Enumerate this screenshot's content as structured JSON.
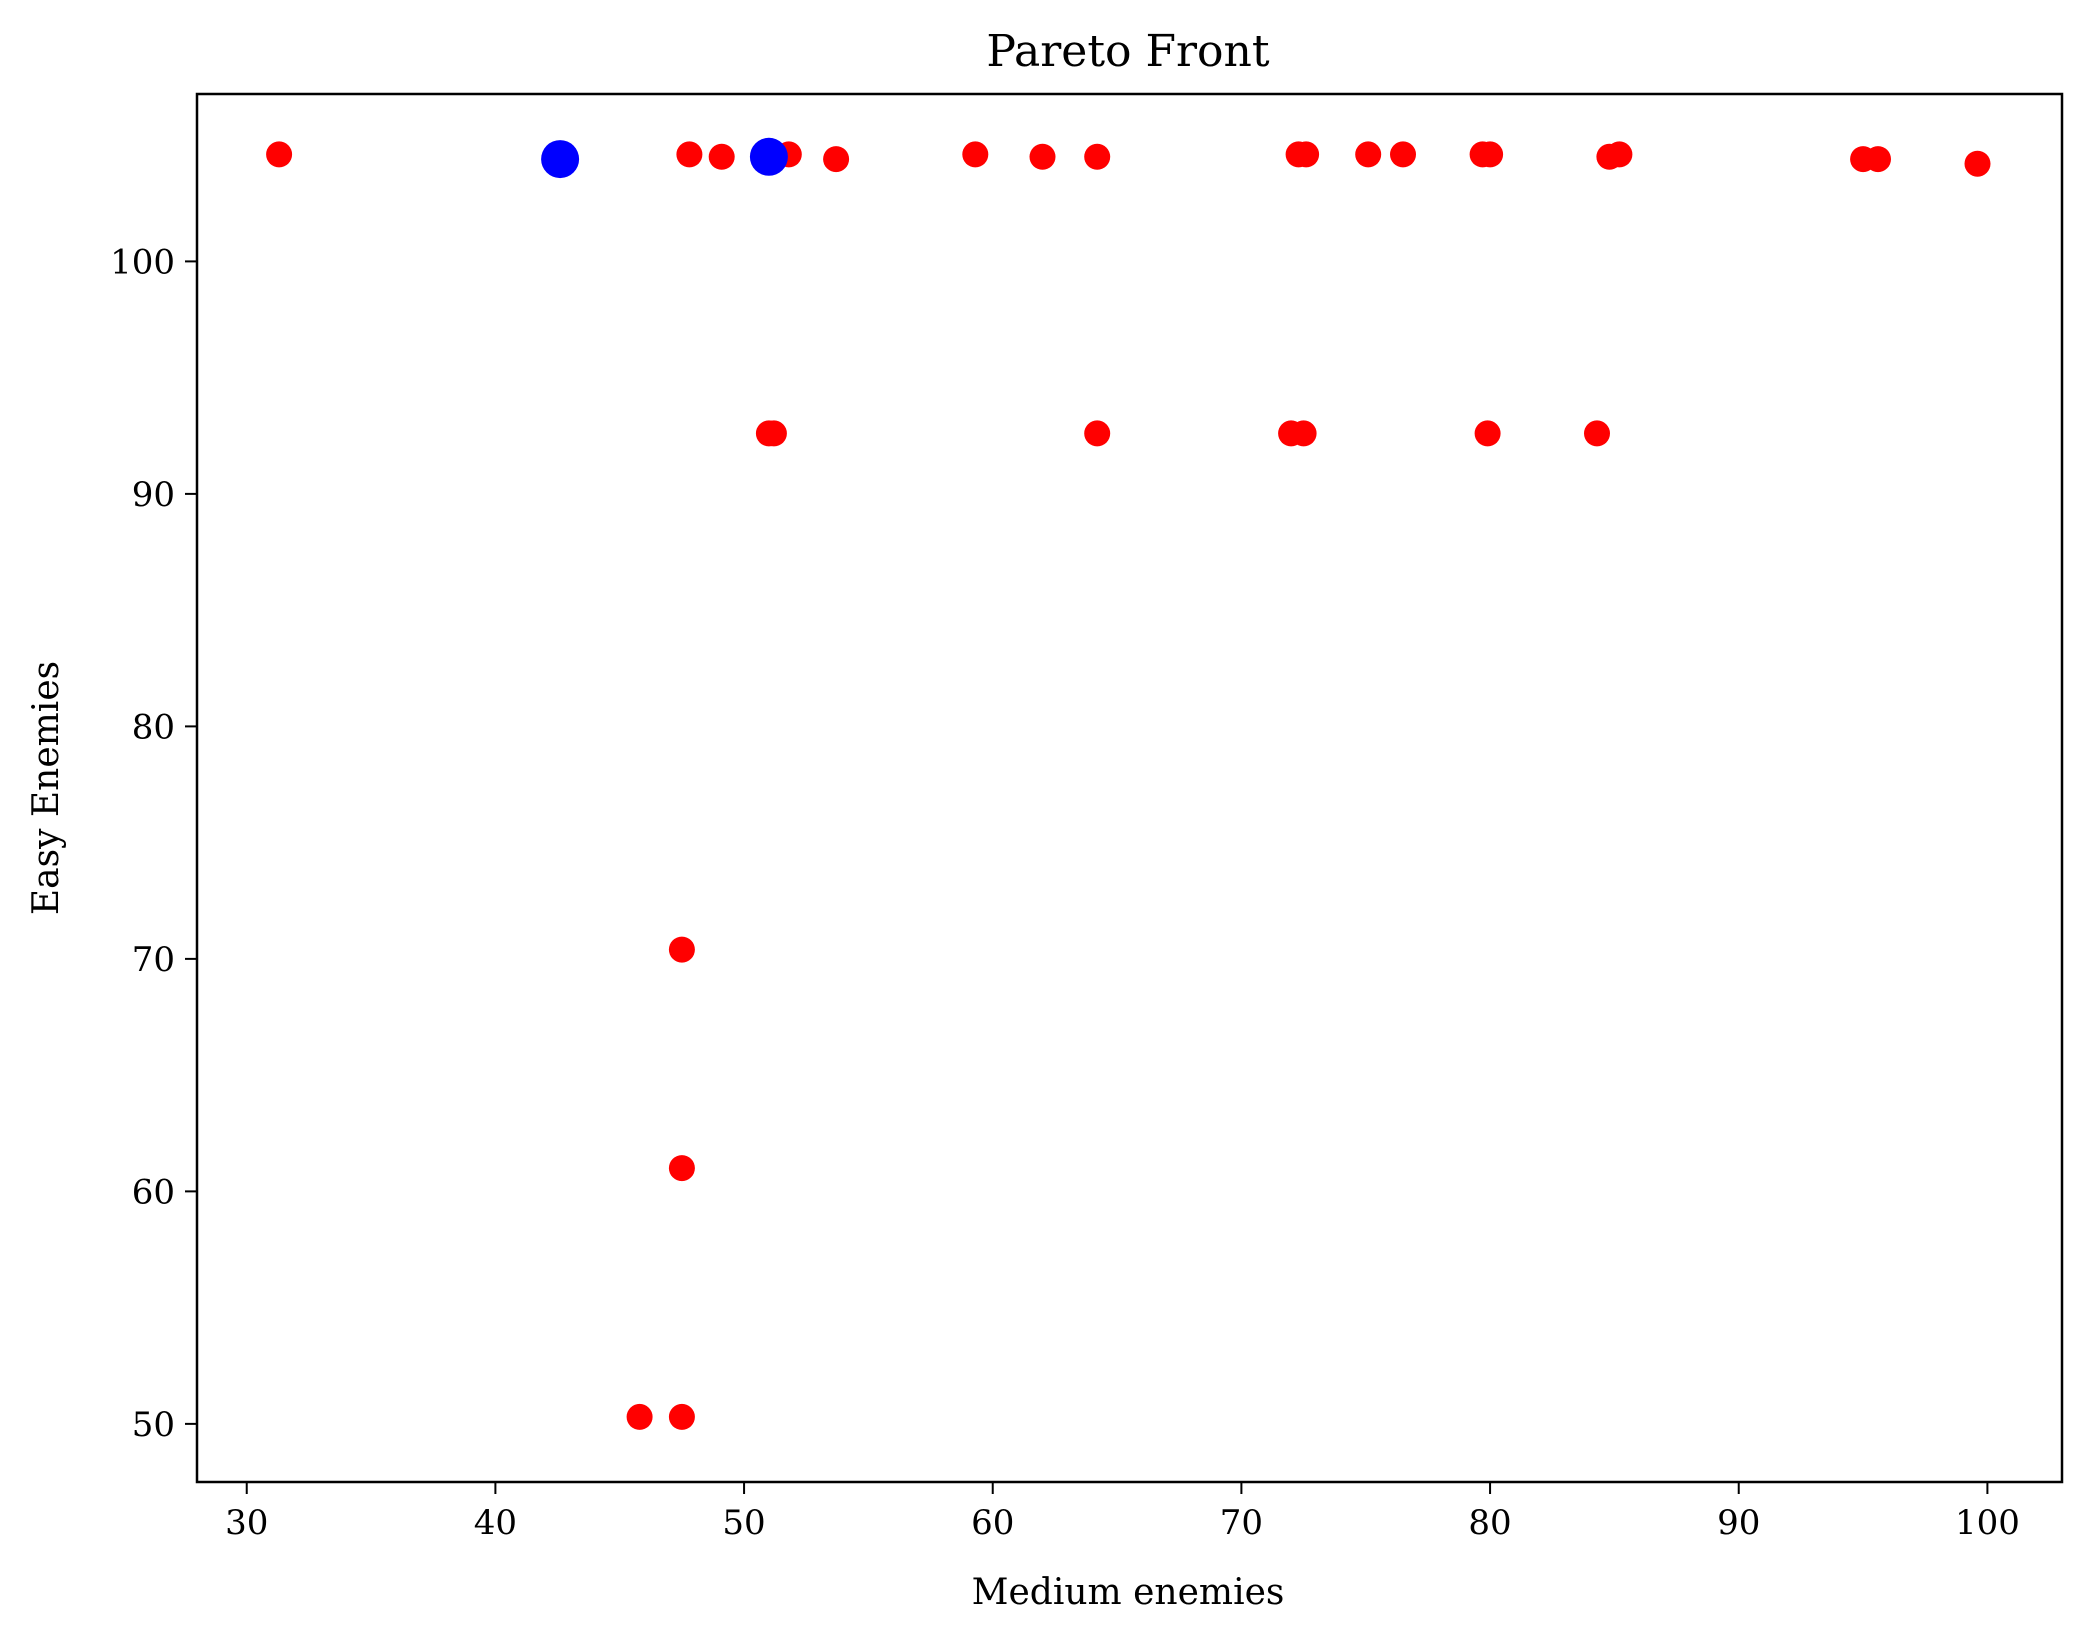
{
  "chart_data": {
    "type": "scatter",
    "title": "Pareto Front",
    "xlabel": "Medium enemies",
    "ylabel": "Easy Enemies",
    "xlim": [
      28,
      103
    ],
    "ylim": [
      47.5,
      107.2
    ],
    "xticks": [
      30,
      40,
      50,
      60,
      70,
      80,
      90,
      100
    ],
    "yticks": [
      50,
      60,
      70,
      80,
      90,
      100
    ],
    "grid": false,
    "series": [
      {
        "color": "#ff0000",
        "marker_size": "small",
        "points": [
          [
            31.3,
            104.6
          ],
          [
            47.8,
            104.6
          ],
          [
            49.1,
            104.5
          ],
          [
            51.8,
            104.6
          ],
          [
            53.7,
            104.4
          ],
          [
            59.3,
            104.6
          ],
          [
            62.0,
            104.5
          ],
          [
            64.2,
            104.5
          ],
          [
            72.3,
            104.6
          ],
          [
            72.6,
            104.6
          ],
          [
            75.1,
            104.6
          ],
          [
            76.5,
            104.6
          ],
          [
            79.7,
            104.6
          ],
          [
            80.0,
            104.6
          ],
          [
            84.8,
            104.5
          ],
          [
            85.2,
            104.6
          ],
          [
            95.0,
            104.4
          ],
          [
            95.6,
            104.4
          ],
          [
            99.6,
            104.2
          ],
          [
            51.0,
            92.6
          ],
          [
            51.2,
            92.6
          ],
          [
            64.2,
            92.6
          ],
          [
            72.0,
            92.6
          ],
          [
            72.5,
            92.6
          ],
          [
            79.9,
            92.6
          ],
          [
            84.3,
            92.6
          ],
          [
            47.5,
            70.4
          ],
          [
            47.5,
            61.0
          ],
          [
            45.8,
            50.3
          ],
          [
            47.5,
            50.3
          ]
        ]
      },
      {
        "color": "#0000ff",
        "marker_size": "large",
        "points": [
          [
            42.6,
            104.4
          ],
          [
            51.0,
            104.5
          ]
        ]
      }
    ]
  }
}
